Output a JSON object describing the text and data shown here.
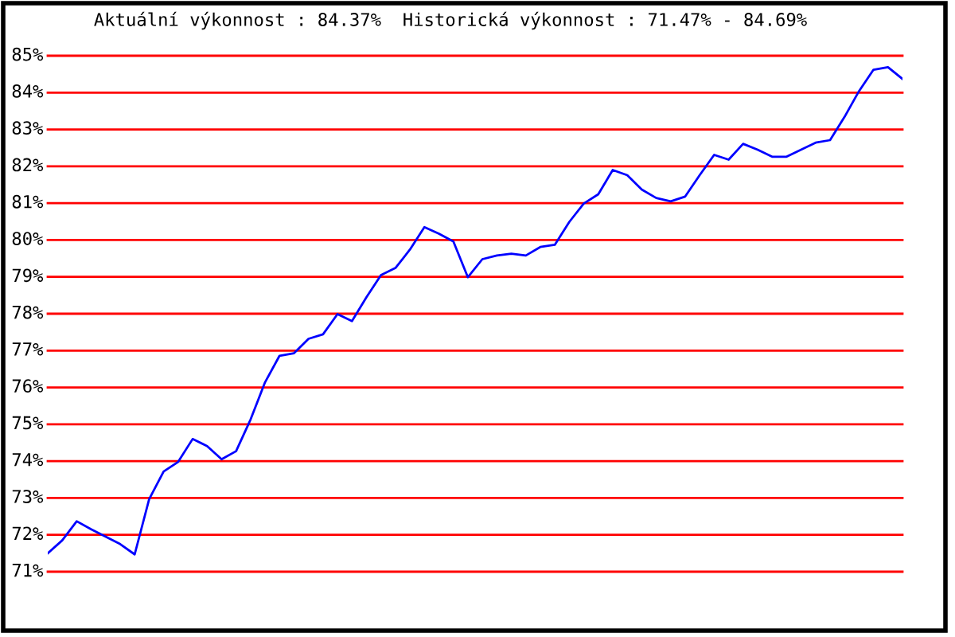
{
  "chart_data": {
    "type": "line",
    "title": "Aktuální výkonnost : 84.37%  Historická výkonnost : 71.47% - 84.69%",
    "categories": [
      null,
      null,
      null,
      null,
      null,
      null,
      null,
      null,
      null,
      null,
      null,
      null,
      null,
      null,
      null,
      null,
      null,
      null,
      null,
      null,
      null,
      null,
      null,
      null,
      null,
      null,
      null,
      null,
      null,
      null,
      null,
      null,
      null,
      null,
      null,
      null,
      null,
      null,
      null,
      null,
      null,
      null,
      null,
      null,
      null,
      null,
      null,
      null,
      null,
      null,
      null,
      null,
      null,
      null,
      null,
      null,
      null,
      null,
      null,
      null
    ],
    "series": [
      {
        "color": "#0000ff",
        "values": [
          71.5,
          71.85,
          72.37,
          72.15,
          71.95,
          71.75,
          71.47,
          72.97,
          73.72,
          73.98,
          74.6,
          74.41,
          74.05,
          74.27,
          75.13,
          76.14,
          76.86,
          76.93,
          77.32,
          77.44,
          77.99,
          77.8,
          78.45,
          79.05,
          79.24,
          79.74,
          80.35,
          80.17,
          79.96,
          78.99,
          79.48,
          79.58,
          79.63,
          79.58,
          79.81,
          79.87,
          80.49,
          80.99,
          81.24,
          81.9,
          81.76,
          81.37,
          81.14,
          81.05,
          81.18,
          81.76,
          82.31,
          82.18,
          82.61,
          82.45,
          82.26,
          82.26,
          82.45,
          82.64,
          82.71,
          83.34,
          84.04,
          84.62,
          84.69,
          84.37
        ]
      }
    ],
    "ylim": [
      71,
      85
    ],
    "yticks": [
      {
        "value": 71,
        "label": "71%"
      },
      {
        "value": 72,
        "label": "72%"
      },
      {
        "value": 73,
        "label": "73%"
      },
      {
        "value": 74,
        "label": "74%"
      },
      {
        "value": 75,
        "label": "75%"
      },
      {
        "value": 76,
        "label": "76%"
      },
      {
        "value": 77,
        "label": "77%"
      },
      {
        "value": 78,
        "label": "78%"
      },
      {
        "value": 79,
        "label": "79%"
      },
      {
        "value": 80,
        "label": "80%"
      },
      {
        "value": 81,
        "label": "81%"
      },
      {
        "value": 82,
        "label": "82%"
      },
      {
        "value": 83,
        "label": "83%"
      },
      {
        "value": 84,
        "label": "84%"
      },
      {
        "value": 85,
        "label": "85%"
      }
    ],
    "grid": "y",
    "tick_labels": "y",
    "marker": "none",
    "line_style": "solid",
    "legend": false
  }
}
